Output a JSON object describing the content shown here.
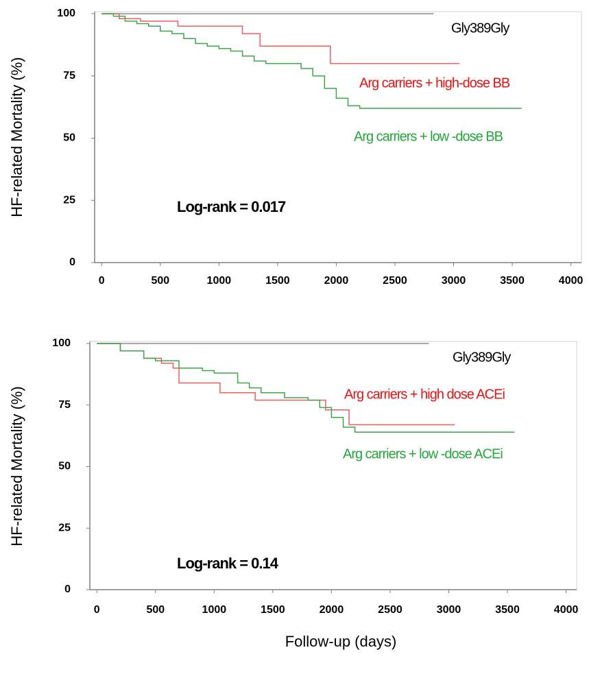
{
  "chart_data": [
    {
      "type": "step",
      "ylabel": "HF-related  Mortality (%)",
      "annotation": "Log-rank  = 0.017",
      "xlim": [
        -60,
        4090
      ],
      "xticks": [
        0,
        500,
        1000,
        1500,
        2000,
        2500,
        3000,
        3500,
        4000
      ],
      "ylim": [
        0,
        100
      ],
      "yticks": [
        0,
        25,
        50,
        75,
        100
      ],
      "series": [
        {
          "name": "Gly389Gly",
          "color": "#8c8c8c",
          "label_color": "#000000",
          "x": [
            0,
            2830
          ],
          "values": [
            100,
            100
          ]
        },
        {
          "name": "Arg carriers + high-dose BB",
          "color": "#f25c5c",
          "label_color": "#ee1111",
          "x": [
            0,
            150,
            330,
            650,
            1200,
            1350,
            1950,
            3050
          ],
          "values": [
            100,
            98,
            97,
            95,
            92,
            87,
            80,
            80
          ]
        },
        {
          "name": "Arg carriers + low -dose BB",
          "color": "#3aa84a",
          "label_color": "#22a83a",
          "x": [
            0,
            100,
            200,
            300,
            400,
            500,
            600,
            700,
            800,
            900,
            1000,
            1100,
            1200,
            1300,
            1400,
            1600,
            1700,
            1800,
            1900,
            2000,
            2100,
            2200,
            3580
          ],
          "values": [
            100,
            99,
            97,
            96,
            95,
            93,
            92,
            90,
            88,
            87,
            86,
            85,
            83,
            81,
            80,
            80,
            78,
            75,
            70,
            66,
            63,
            62,
            62
          ]
        }
      ]
    },
    {
      "type": "step",
      "ylabel": "HF-related  Mortality (%)",
      "annotation": "Log-rank  = 0.14",
      "xlabel": "Follow-up (days)",
      "xlim": [
        -60,
        4090
      ],
      "xticks": [
        0,
        500,
        1000,
        1500,
        2000,
        2500,
        3000,
        3500,
        4000
      ],
      "ylim": [
        0,
        100
      ],
      "yticks": [
        0,
        25,
        50,
        75,
        100
      ],
      "series": [
        {
          "name": "Gly389Gly",
          "color": "#8c8c8c",
          "label_color": "#000000",
          "x": [
            0,
            2830
          ],
          "values": [
            100,
            100
          ]
        },
        {
          "name": "Arg carriers + high dose ACEi",
          "color": "#f25c5c",
          "label_color": "#ee1111",
          "x": [
            0,
            200,
            400,
            550,
            650,
            700,
            1050,
            1350,
            1950,
            2150,
            3050
          ],
          "values": [
            100,
            97,
            94,
            92,
            90,
            84,
            80,
            77,
            73,
            67,
            67
          ]
        },
        {
          "name": "Arg carriers + low -dose ACEi",
          "color": "#3aa84a",
          "label_color": "#22a83a",
          "x": [
            0,
            200,
            400,
            500,
            700,
            900,
            1000,
            1200,
            1300,
            1400,
            1600,
            1800,
            1900,
            2000,
            2100,
            2200,
            3560
          ],
          "values": [
            100,
            97,
            94,
            93,
            90,
            89,
            88,
            84,
            82,
            80,
            78,
            77,
            74,
            70,
            66,
            64,
            64
          ]
        }
      ]
    }
  ]
}
